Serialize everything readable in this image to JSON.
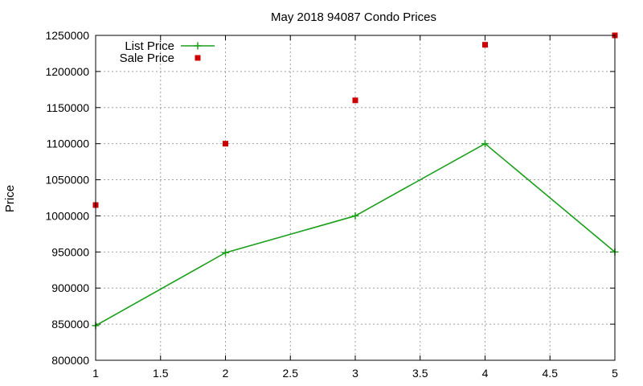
{
  "chart_data": {
    "type": "line",
    "title": "May 2018 94087 Condo Prices",
    "xlabel": "",
    "ylabel": "Price",
    "xlim": [
      1,
      5
    ],
    "ylim": [
      800000,
      1250000
    ],
    "x_ticks": [
      "1",
      "1.5",
      "2",
      "2.5",
      "3",
      "3.5",
      "4",
      "4.5",
      "5"
    ],
    "y_ticks": [
      "800000",
      "850000",
      "900000",
      "950000",
      "1000000",
      "1050000",
      "1100000",
      "1150000",
      "1200000",
      "1250000"
    ],
    "grid": true,
    "legend_position": "top-left",
    "series": [
      {
        "name": "List Price",
        "style": "line-with-plus-markers",
        "color": "#1aa01a",
        "x": [
          1,
          2,
          3,
          4,
          5
        ],
        "y": [
          848000,
          949000,
          1000000,
          1100000,
          950000
        ]
      },
      {
        "name": "Sale Price",
        "style": "square-markers",
        "color": "#cc0000",
        "x": [
          1,
          2,
          3,
          4,
          5
        ],
        "y": [
          1015000,
          1100000,
          1160000,
          1237000,
          1250000
        ]
      }
    ]
  }
}
